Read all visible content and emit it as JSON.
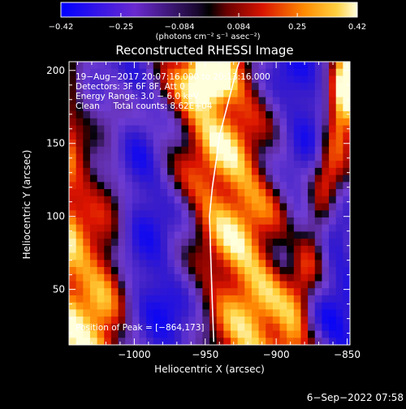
{
  "chart_data": {
    "type": "heatmap",
    "title": "Reconstructed RHESSI Image",
    "xlabel": "Heliocentric X (arcsec)",
    "ylabel": "Heliocentric Y (arcsec)",
    "xlim": [
      -1046,
      -848
    ],
    "ylim": [
      12,
      206
    ],
    "xticks": [
      -1000,
      -950,
      -900,
      -850
    ],
    "xtick_labels": [
      "−1000",
      "−950",
      "−900",
      "−850"
    ],
    "yticks": [
      50,
      100,
      150,
      200
    ],
    "ytick_labels": [
      "50",
      "100",
      "150",
      "200"
    ],
    "colorbar": {
      "range": [
        -0.42,
        0.42
      ],
      "tick_values": [
        -0.42,
        -0.25,
        -0.084,
        0.084,
        0.25,
        0.42
      ],
      "tick_labels": [
        "−0.42",
        "−0.25",
        "−0.084",
        "0.084",
        "0.25",
        "0.42"
      ],
      "unit_label": "(photons cm⁻² s⁻¹ asec⁻²)"
    },
    "annotations": [
      "19−Aug−2017 20:07:16.000 to 20:13:16.000",
      "Detectors: 3F 6F 8F, Att 0",
      "Energy Range: 3.0 − 6.0 keV",
      "Clean     Total counts: 8.62E+04",
      "Position of Peak = [−864,173]"
    ],
    "peak": [
      -864,
      173
    ],
    "limb_curve": {
      "x": [
        -944,
        -945,
        -946,
        -947,
        -945,
        -942,
        -940,
        -936,
        -932,
        -928,
        -926
      ],
      "y": [
        14,
        40,
        70,
        100,
        120,
        140,
        155,
        170,
        185,
        200,
        206
      ]
    },
    "colormap": [
      "#0000ff",
      "#5a2cc8",
      "#8a4ad4",
      "#000000",
      "#8b0000",
      "#e01a00",
      "#ff8c00",
      "#ffff80"
    ]
  },
  "footer": {
    "timestamp": "6−Sep−2022 07:58"
  }
}
